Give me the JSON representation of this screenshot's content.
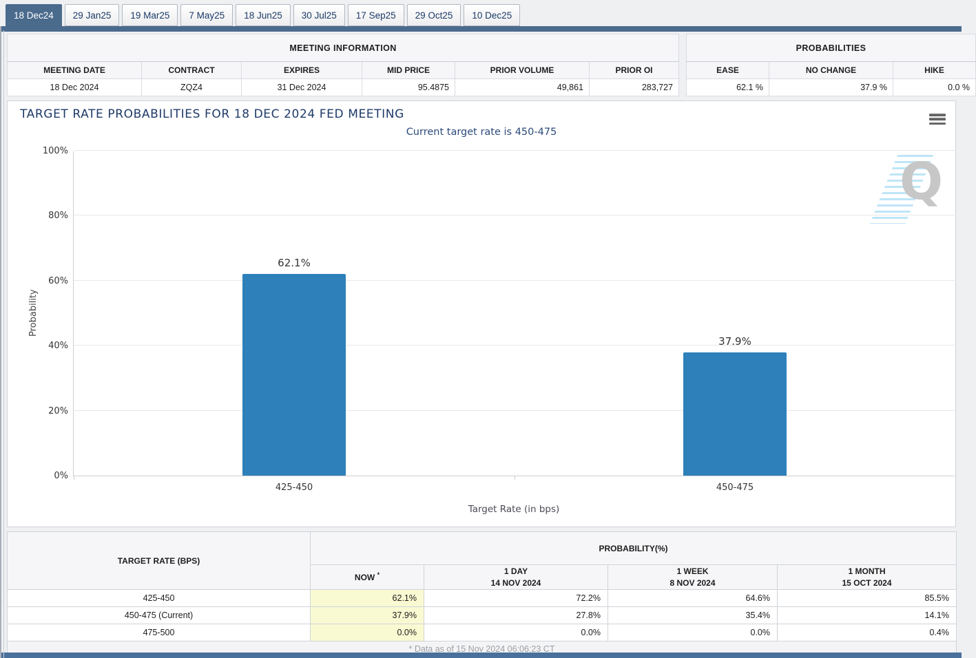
{
  "colors": {
    "selected_tab": "#4b6b8d",
    "tab_text": "#1b3a66",
    "bar": "#2d80b9",
    "now_highlight": "#fafad2",
    "chart_title": "#1e3a68",
    "chart_subtitle": "#2c4a7a",
    "bottom_bar": "#4a709c"
  },
  "tabs": [
    {
      "label": "18 Dec24",
      "selected": true
    },
    {
      "label": "29 Jan25",
      "selected": false
    },
    {
      "label": "19 Mar25",
      "selected": false
    },
    {
      "label": "7 May25",
      "selected": false
    },
    {
      "label": "18 Jun25",
      "selected": false
    },
    {
      "label": "30 Jul25",
      "selected": false
    },
    {
      "label": "17 Sep25",
      "selected": false
    },
    {
      "label": "29 Oct25",
      "selected": false
    },
    {
      "label": "10 Dec25",
      "selected": false
    }
  ],
  "meeting_information": {
    "title": "MEETING INFORMATION",
    "columns": [
      "MEETING DATE",
      "CONTRACT",
      "EXPIRES",
      "MID PRICE",
      "PRIOR VOLUME",
      "PRIOR OI"
    ],
    "values": [
      "18 Dec 2024",
      "ZQZ4",
      "31 Dec 2024",
      "95.4875",
      "49,861",
      "283,727"
    ]
  },
  "probabilities": {
    "title": "PROBABILITIES",
    "columns": [
      "EASE",
      "NO CHANGE",
      "HIKE"
    ],
    "values": [
      "62.1 %",
      "37.9 %",
      "0.0 %"
    ]
  },
  "chart": {
    "watermark_letter": "Q"
  },
  "chart_data": {
    "type": "bar",
    "title": "TARGET RATE PROBABILITIES FOR 18 DEC 2024 FED MEETING",
    "subtitle": "Current target rate is 450-475",
    "categories": [
      "425-450",
      "450-475"
    ],
    "values": [
      62.1,
      37.9
    ],
    "value_labels": [
      "62.1%",
      "37.9%"
    ],
    "xlabel": "Target Rate (in bps)",
    "ylabel": "Probability",
    "ylim": [
      0,
      100
    ],
    "yticks": [
      0,
      20,
      40,
      60,
      80,
      100
    ],
    "ytick_suffix": "%",
    "bar_color": "#2d80b9",
    "grid": true,
    "legend": false
  },
  "probability_table": {
    "corner_header": "TARGET RATE (BPS)",
    "group_header": "PROBABILITY(%)",
    "now_suffix": "*",
    "col_headers": [
      [
        "NOW"
      ],
      [
        "1 DAY",
        "14 NOV 2024"
      ],
      [
        "1 WEEK",
        "8 NOV 2024"
      ],
      [
        "1 MONTH",
        "15 OCT 2024"
      ]
    ],
    "rows": [
      [
        "425-450",
        "62.1%",
        "72.2%",
        "64.6%",
        "85.5%"
      ],
      [
        "450-475 (Current)",
        "37.9%",
        "27.8%",
        "35.4%",
        "14.1%"
      ],
      [
        "475-500",
        "0.0%",
        "0.0%",
        "0.0%",
        "0.4%"
      ]
    ],
    "footnote": "* Data as of 15 Nov 2024 06:06:23 CT"
  }
}
